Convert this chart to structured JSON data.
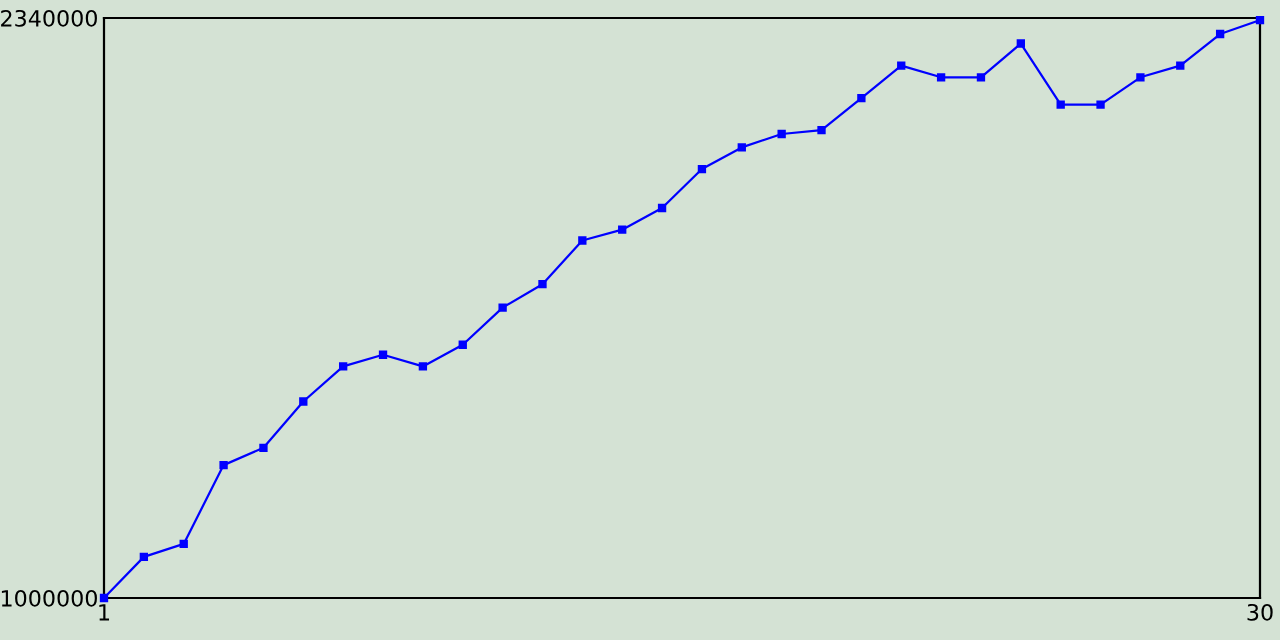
{
  "chart_data": {
    "type": "line",
    "x": [
      1,
      2,
      3,
      4,
      5,
      6,
      7,
      8,
      9,
      10,
      11,
      12,
      13,
      14,
      15,
      16,
      17,
      18,
      19,
      20,
      21,
      22,
      23,
      24,
      25,
      26,
      27,
      28,
      29,
      30
    ],
    "series": [
      {
        "color": "#0000ff",
        "values": [
          1000000,
          1095000,
          1125000,
          1307000,
          1347000,
          1454000,
          1535000,
          1562000,
          1535000,
          1585000,
          1671000,
          1725000,
          1826000,
          1851000,
          1901000,
          1991000,
          2041000,
          2072000,
          2081000,
          2155000,
          2230000,
          2203000,
          2203000,
          2281000,
          2140000,
          2140000,
          2203000,
          2230000,
          2303000,
          2335000
        ]
      }
    ],
    "xlim": [
      1,
      30
    ],
    "ylim": [
      1000000,
      2340000
    ],
    "xticks": [
      1,
      30
    ],
    "yticks": [
      1000000,
      2340000
    ],
    "grid": false,
    "legend": false,
    "marker": "square",
    "line_style": "solid"
  }
}
